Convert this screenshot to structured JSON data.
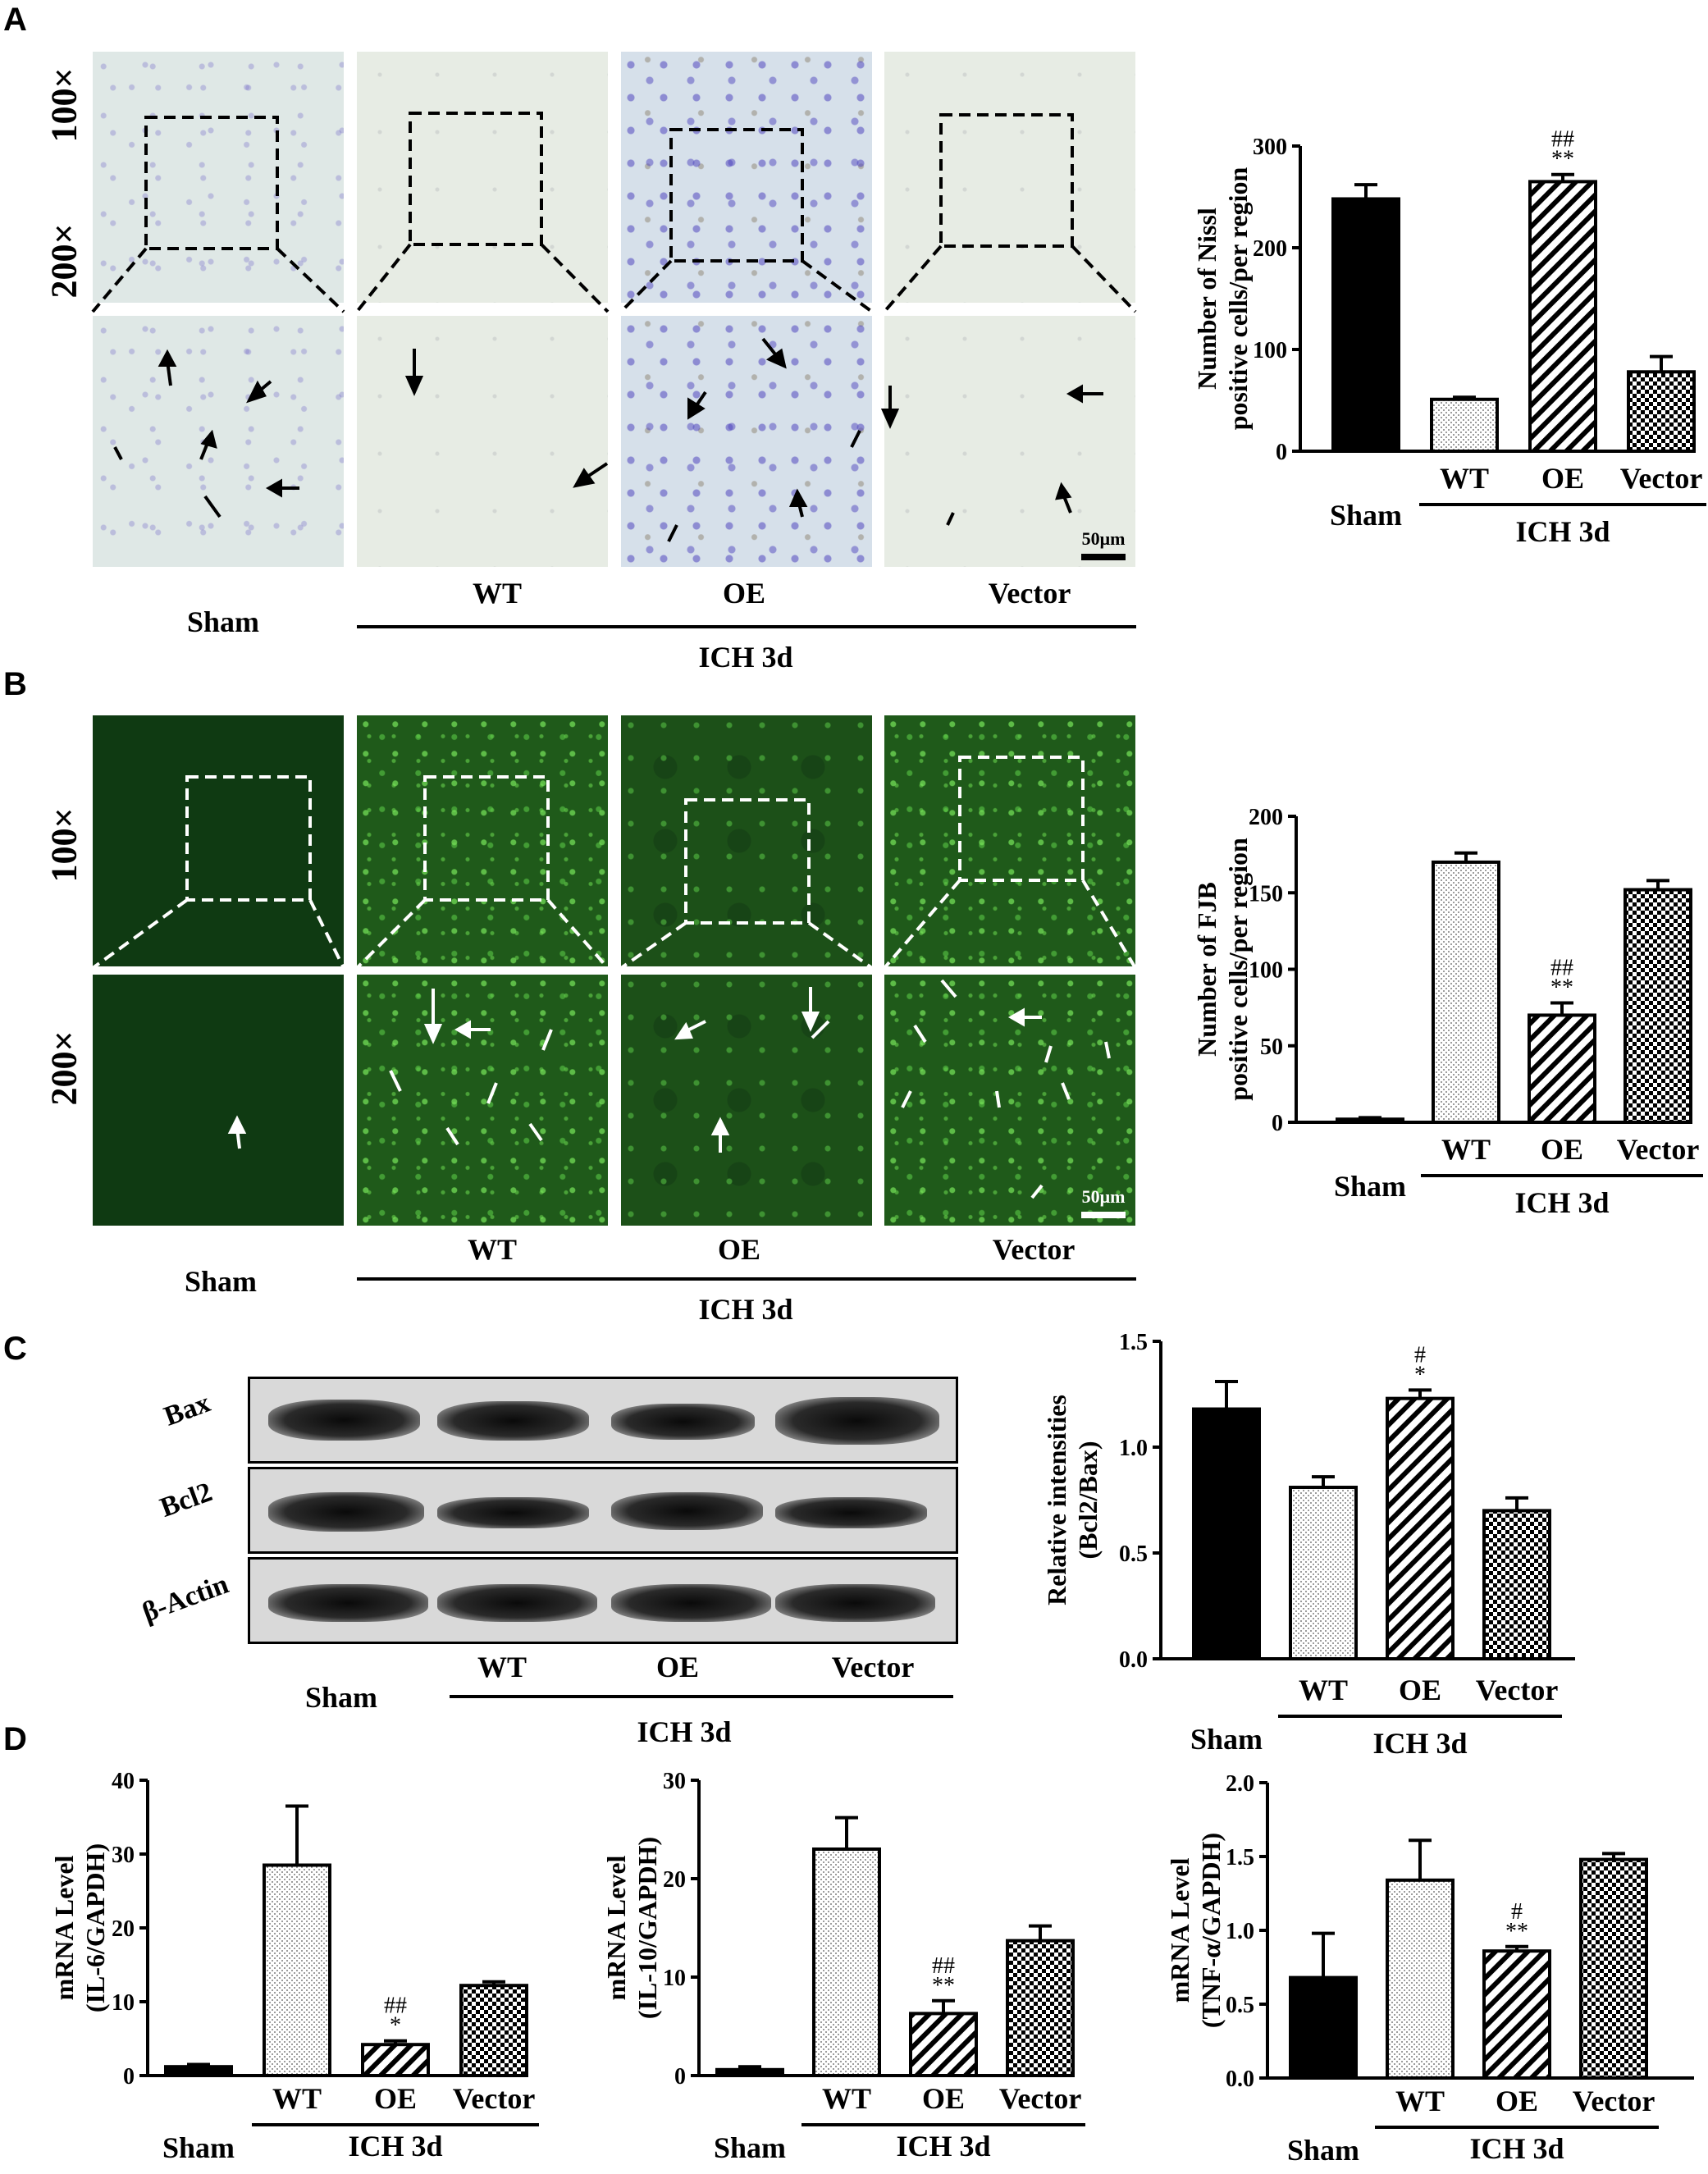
{
  "panels": {
    "A": {
      "label": "A",
      "row_labels": [
        "100×",
        "200×"
      ],
      "groups": {
        "sham": "Sham",
        "wt": "WT",
        "oe": "OE",
        "vector": "Vector",
        "ich": "ICH 3d"
      },
      "scale_bar": "50μm"
    },
    "B": {
      "label": "B",
      "row_labels": [
        "100×",
        "200×"
      ],
      "groups": {
        "sham": "Sham",
        "wt": "WT",
        "oe": "OE",
        "vector": "Vector",
        "ich": "ICH 3d"
      },
      "scale_bar": "50μm"
    },
    "C": {
      "label": "C",
      "blot_rows": [
        "Bax",
        "Bcl2",
        "β-Actin"
      ],
      "groups": {
        "sham": "Sham",
        "wt": "WT",
        "oe": "OE",
        "vector": "Vector",
        "ich": "ICH 3d"
      }
    },
    "D": {
      "label": "D"
    }
  },
  "chart_data": [
    {
      "id": "nissl",
      "type": "bar",
      "ylabel": "Number of Nissl positive cells/per region",
      "categories": [
        "Sham",
        "WT",
        "OE",
        "Vector"
      ],
      "group_label": "ICH 3d",
      "values": [
        248,
        51,
        265,
        78
      ],
      "errors": [
        14,
        2,
        7,
        15
      ],
      "annotations": [
        "",
        "",
        "##\n**",
        ""
      ],
      "ylim": [
        0,
        300
      ],
      "yticks": [
        0,
        100,
        200,
        300
      ],
      "fills": [
        "solid",
        "dots",
        "diag",
        "check"
      ]
    },
    {
      "id": "fjb",
      "type": "bar",
      "ylabel": "Number of FJB positive cells/per region",
      "categories": [
        "Sham",
        "WT",
        "OE",
        "Vector"
      ],
      "group_label": "ICH 3d",
      "values": [
        2,
        170,
        70,
        152
      ],
      "errors": [
        1,
        6,
        8,
        6
      ],
      "annotations": [
        "",
        "",
        "##\n**",
        ""
      ],
      "ylim": [
        0,
        200
      ],
      "yticks": [
        0,
        50,
        100,
        150,
        200
      ],
      "fills": [
        "solid",
        "dots",
        "diag",
        "check"
      ]
    },
    {
      "id": "bcl2bax",
      "type": "bar",
      "ylabel": "Relative intensities (Bcl2/Bax)",
      "categories": [
        "Sham",
        "WT",
        "OE",
        "Vector"
      ],
      "group_label": "ICH 3d",
      "values": [
        1.18,
        0.81,
        1.23,
        0.7
      ],
      "errors": [
        0.13,
        0.05,
        0.04,
        0.06
      ],
      "annotations": [
        "",
        "",
        "#\n*",
        ""
      ],
      "ylim": [
        0,
        1.5
      ],
      "yticks": [
        0.0,
        0.5,
        1.0,
        1.5
      ],
      "fills": [
        "solid",
        "dots",
        "diag",
        "check"
      ]
    },
    {
      "id": "il6",
      "type": "bar",
      "ylabel": "mRNA Level (IL-6/GAPDH)",
      "categories": [
        "Sham",
        "WT",
        "OE",
        "Vector"
      ],
      "group_label": "ICH 3d",
      "values": [
        1.2,
        28.5,
        4.2,
        12.2
      ],
      "errors": [
        0.3,
        8,
        0.5,
        0.5
      ],
      "annotations": [
        "",
        "",
        "##\n*",
        ""
      ],
      "ylim": [
        0,
        40
      ],
      "yticks": [
        0,
        10,
        20,
        30,
        40
      ],
      "fills": [
        "solid",
        "dots",
        "diag",
        "check"
      ]
    },
    {
      "id": "il10",
      "type": "bar",
      "ylabel": "mRNA Level (IL-10/GAPDH)",
      "categories": [
        "Sham",
        "WT",
        "OE",
        "Vector"
      ],
      "group_label": "ICH 3d",
      "values": [
        0.6,
        23.0,
        6.3,
        13.7
      ],
      "errors": [
        0.3,
        3.2,
        1.3,
        1.5
      ],
      "annotations": [
        "",
        "",
        "##\n**",
        ""
      ],
      "ylim": [
        0,
        30
      ],
      "yticks": [
        0,
        10,
        20,
        30
      ],
      "fills": [
        "solid",
        "dots",
        "diag",
        "check"
      ]
    },
    {
      "id": "tnfa",
      "type": "bar",
      "ylabel": "mRNA Level (TNF-α/GAPDH)",
      "categories": [
        "Sham",
        "WT",
        "OE",
        "Vector"
      ],
      "group_label": "ICH 3d",
      "values": [
        0.68,
        1.34,
        0.86,
        1.48
      ],
      "errors": [
        0.3,
        0.27,
        0.03,
        0.04
      ],
      "annotations": [
        "",
        "",
        "#\n**",
        ""
      ],
      "ylim": [
        0,
        2.0
      ],
      "yticks": [
        0.0,
        0.5,
        1.0,
        1.5,
        2.0
      ],
      "fills": [
        "solid",
        "dots",
        "diag",
        "check"
      ]
    }
  ]
}
